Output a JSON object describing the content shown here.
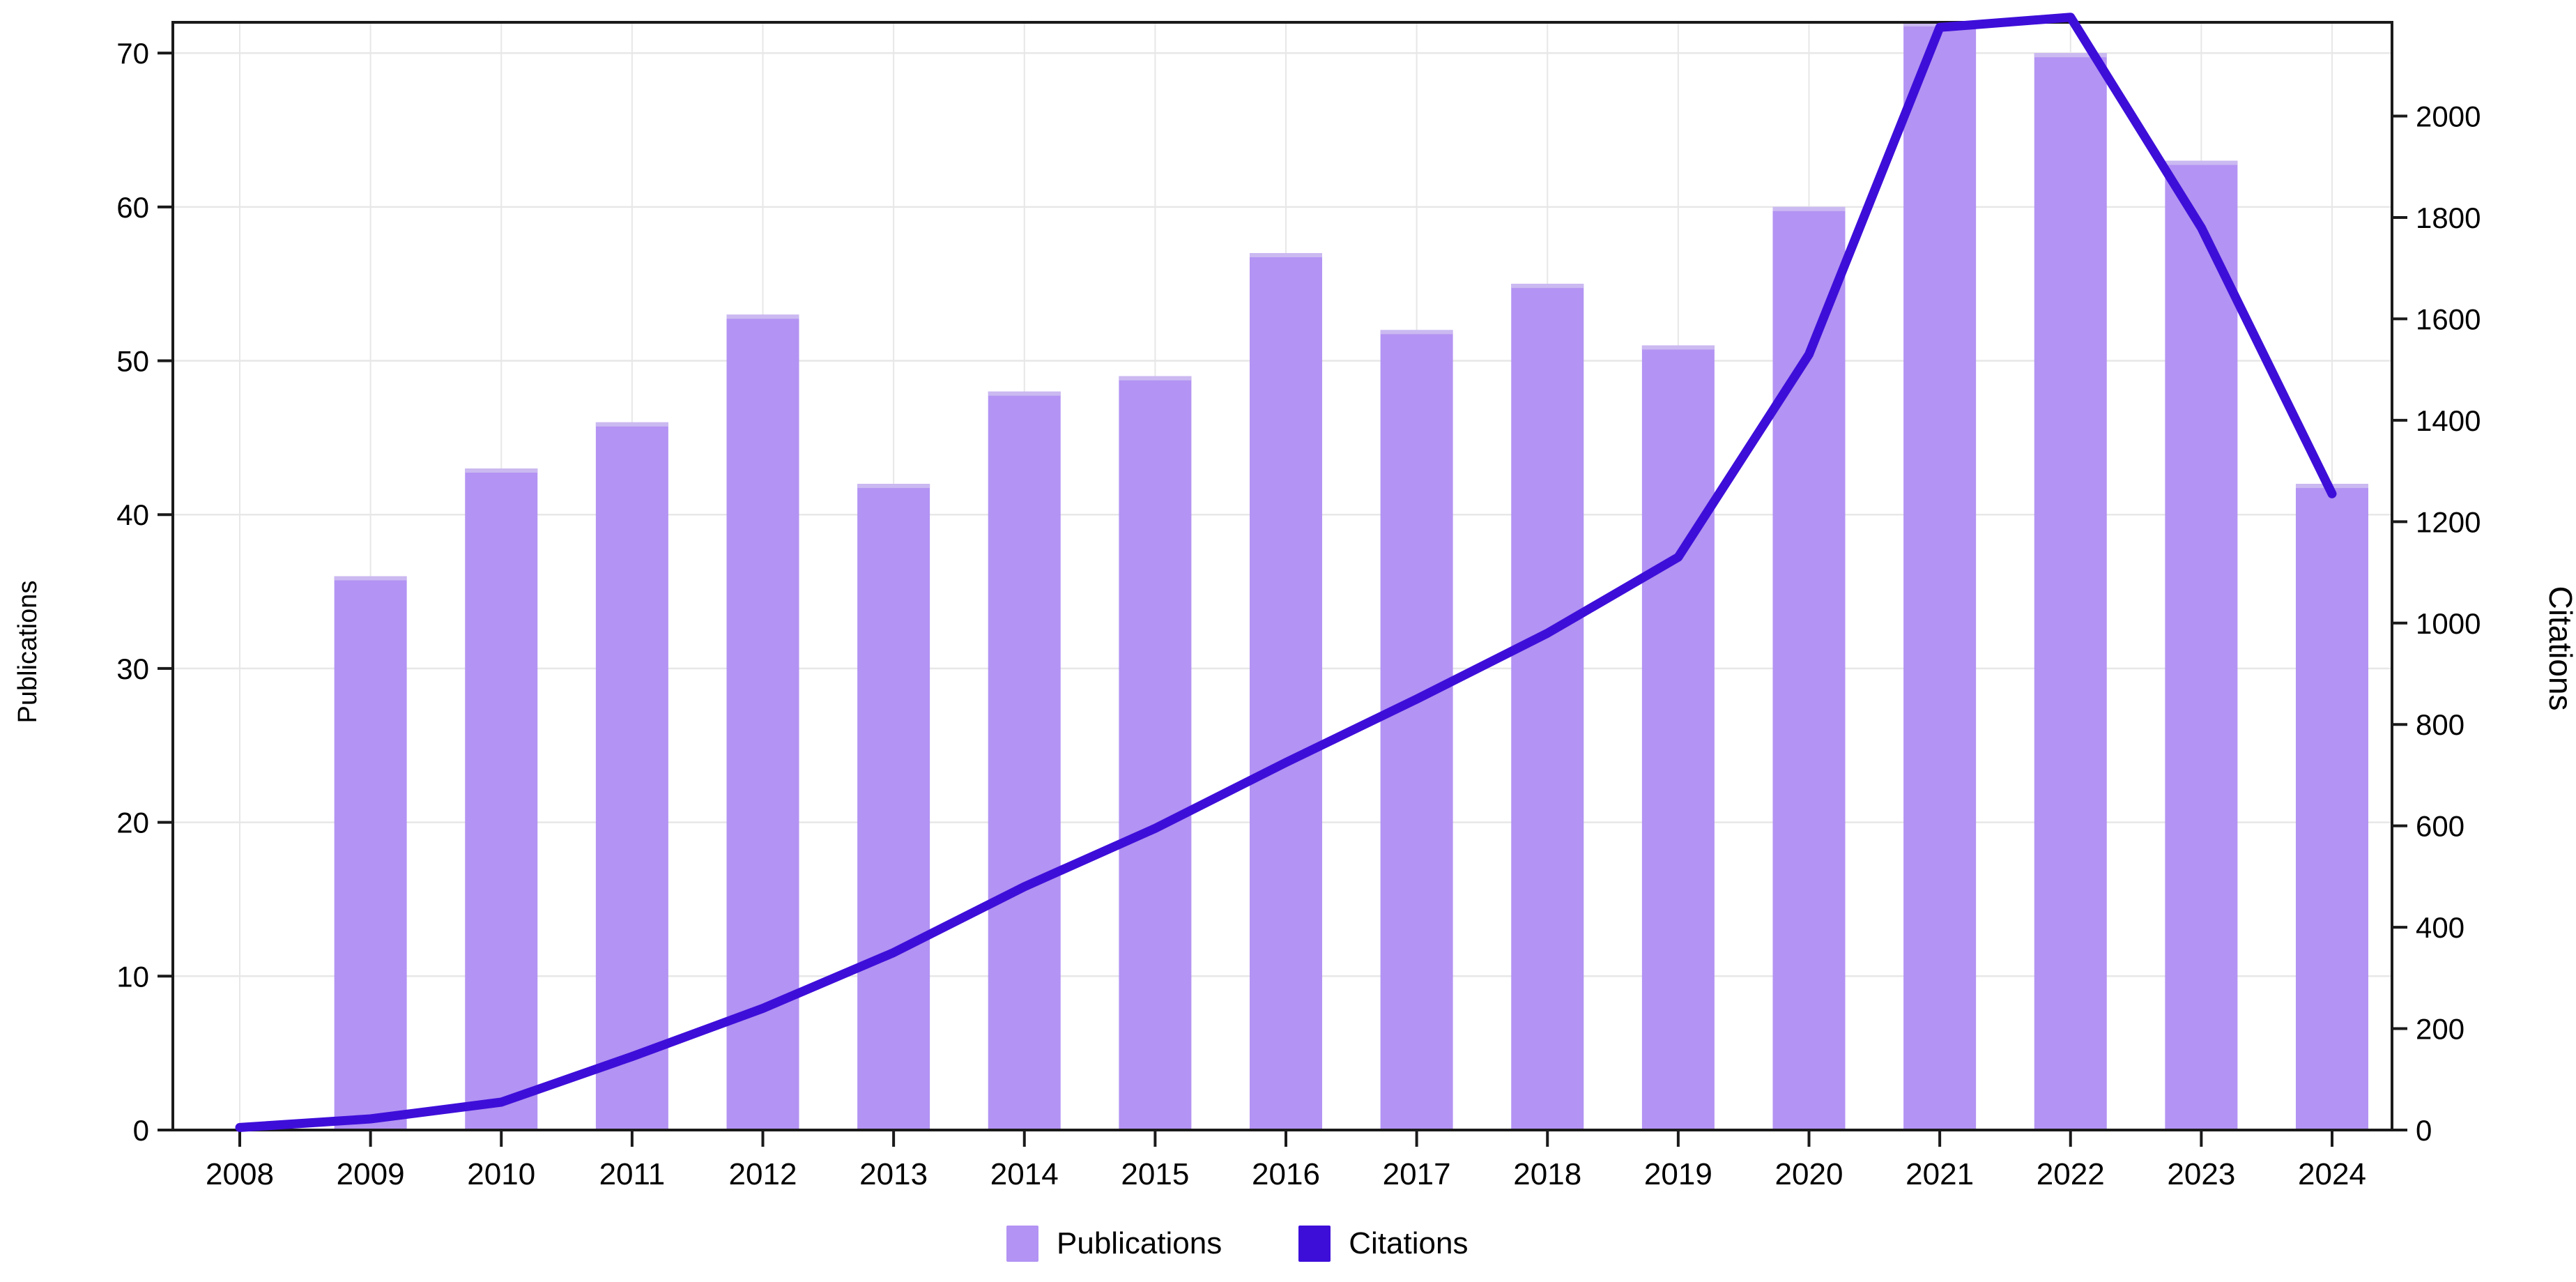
{
  "chart_data": {
    "type": "bar+line",
    "title": "",
    "categories": [
      "2008",
      "2009",
      "2010",
      "2011",
      "2012",
      "2013",
      "2014",
      "2015",
      "2016",
      "2017",
      "2018",
      "2019",
      "2020",
      "2021",
      "2022",
      "2023",
      "2024"
    ],
    "series": [
      {
        "name": "Publications",
        "type": "bar",
        "yaxis": "left",
        "color": "#b393f3",
        "values": [
          0,
          36,
          43,
          46,
          53,
          42,
          48,
          49,
          57,
          52,
          55,
          51,
          60,
          72,
          70,
          63,
          42
        ]
      },
      {
        "name": "Citations",
        "type": "line",
        "yaxis": "right",
        "color": "#3e0ed9",
        "values": [
          5,
          22,
          55,
          145,
          240,
          350,
          480,
          595,
          725,
          850,
          980,
          1130,
          1530,
          2175,
          2195,
          1780,
          1255
        ]
      }
    ],
    "left_axis": {
      "title": "Publications",
      "ticks": [
        "0",
        "10",
        "20",
        "30",
        "40",
        "50",
        "60",
        "70"
      ],
      "tick_values": [
        0,
        10,
        20,
        30,
        40,
        50,
        60,
        70
      ],
      "range": [
        0,
        72
      ]
    },
    "right_axis": {
      "title": "Citations",
      "ticks": [
        "0",
        "200",
        "400",
        "600",
        "800",
        "1000",
        "1200",
        "1400",
        "1600",
        "1800",
        "2000"
      ],
      "tick_values": [
        0,
        200,
        400,
        600,
        800,
        1000,
        1200,
        1400,
        1600,
        1800,
        2000
      ],
      "range": [
        0,
        2185
      ]
    },
    "x_axis": {
      "ticks": [
        "2008",
        "2009",
        "2010",
        "2011",
        "2012",
        "2013",
        "2014",
        "2015",
        "2016",
        "2017",
        "2018",
        "2019",
        "2020",
        "2021",
        "2022",
        "2023",
        "2024"
      ]
    },
    "legend": {
      "position": "bottom-center",
      "entries": [
        "Publications",
        "Citations"
      ]
    },
    "grid": true,
    "colors": {
      "bar": "#b393f3",
      "bar_cap": "#cbb9f1",
      "line": "#3e0ed9",
      "axis": "#1a1a1a",
      "gridline": "#e7e7e7",
      "background": "#ffffff",
      "text": "#000000"
    }
  }
}
